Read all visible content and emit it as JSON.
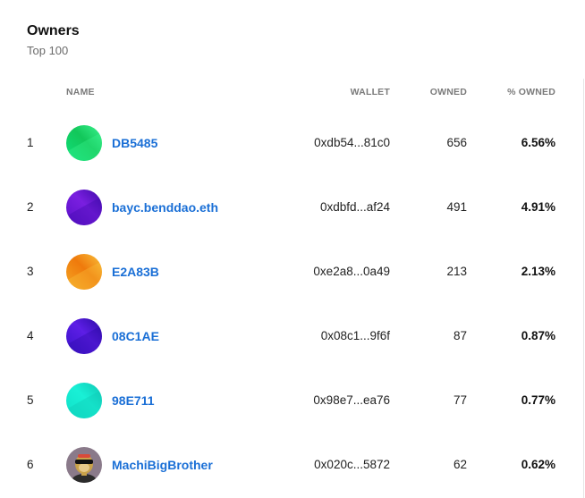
{
  "header": {
    "title": "Owners",
    "subtitle": "Top 100"
  },
  "columns": {
    "name": "NAME",
    "wallet": "WALLET",
    "owned": "OWNED",
    "pct_owned": "% OWNED"
  },
  "rows": [
    {
      "rank": "1",
      "name": "DB5485",
      "wallet": "0xdb54...81c0",
      "owned": "656",
      "pct": "6.56%",
      "avatar": "green-gradient-avatar",
      "colors": [
        "#0fe07a",
        "#12c75a",
        "#3cf38f"
      ]
    },
    {
      "rank": "2",
      "name": "bayc.benddao.eth",
      "wallet": "0xdbfd...af24",
      "owned": "491",
      "pct": "4.91%",
      "avatar": "purple-gradient-avatar",
      "colors": [
        "#5a10c8",
        "#7a1fe0",
        "#3d0aa8"
      ]
    },
    {
      "rank": "3",
      "name": "E2A83B",
      "wallet": "0xe2a8...0a49",
      "owned": "213",
      "pct": "2.13%",
      "avatar": "orange-gradient-avatar",
      "colors": [
        "#f5a623",
        "#ef7a0c",
        "#f9c23c"
      ]
    },
    {
      "rank": "4",
      "name": "08C1AE",
      "wallet": "0x08c1...9f6f",
      "owned": "87",
      "pct": "0.87%",
      "avatar": "violet-gradient-avatar",
      "colors": [
        "#3a12c9",
        "#5d1ee6",
        "#2a0aa3"
      ]
    },
    {
      "rank": "5",
      "name": "98E711",
      "wallet": "0x98e7...ea76",
      "owned": "77",
      "pct": "0.77%",
      "avatar": "teal-gradient-avatar",
      "colors": [
        "#10e0c8",
        "#19f0d6",
        "#0fc6b3"
      ]
    },
    {
      "rank": "6",
      "name": "MachiBigBrother",
      "wallet": "0x020c...5872",
      "owned": "62",
      "pct": "0.62%",
      "avatar": "ape-nft-avatar",
      "colors": [
        "#8a7a8a",
        "#c9a24a",
        "#2b2b2b"
      ]
    }
  ]
}
